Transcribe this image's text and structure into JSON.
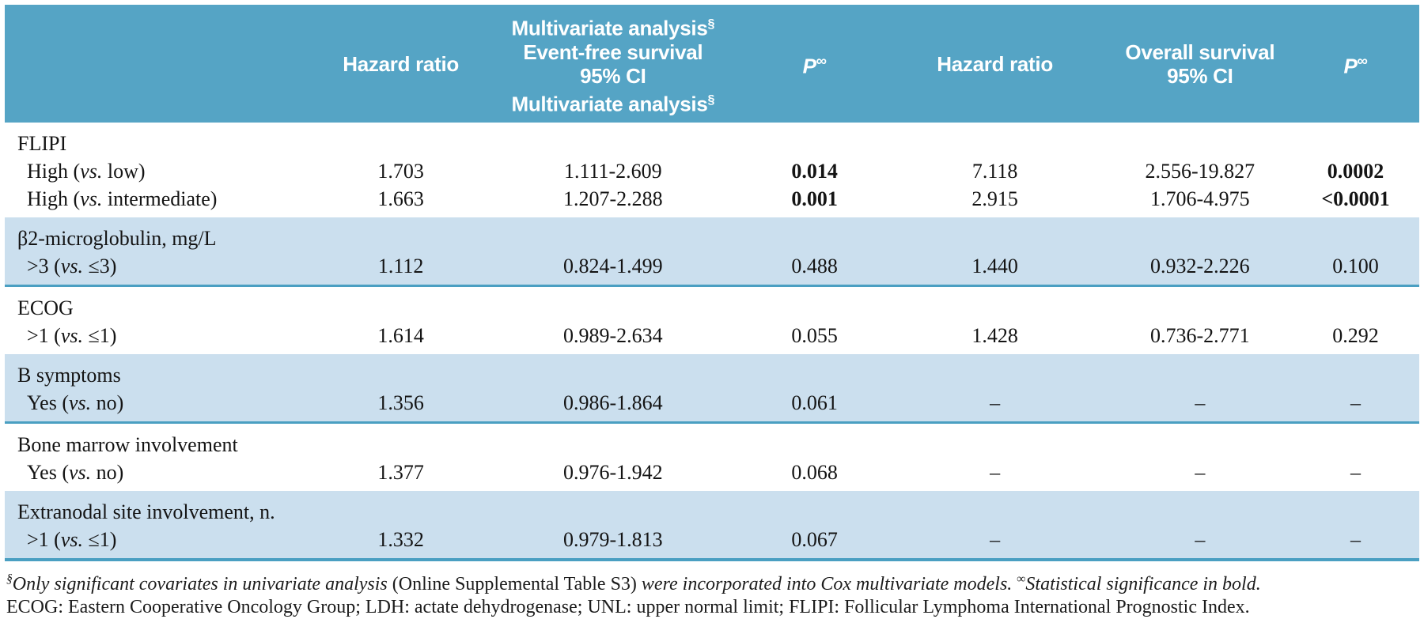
{
  "colors": {
    "header_bg": "#55a4c5",
    "band_bg": "#cbdfee",
    "rule": "#4a9fc2",
    "text": "#141414",
    "header_text": "#ffffff",
    "page_bg": "#ffffff"
  },
  "header": {
    "hazard_ratio_efs": "Hazard ratio",
    "efs_line1": "Multivariate analysis",
    "efs_sup1": "§",
    "efs_line2": "Event-free survival",
    "efs_line3": "95% CI",
    "efs_line4": "Multivariate analysis",
    "efs_sup2": "§",
    "p_efs": "P",
    "p_efs_sup": "∞",
    "hazard_ratio_os": "Hazard ratio",
    "os_line1": "Overall survival",
    "os_line2": "95% CI",
    "p_os": "P",
    "p_os_sup": "∞"
  },
  "sections": [
    {
      "title": "FLIPI",
      "rows": [
        {
          "label_pre": "High (",
          "label_vs": "vs.",
          "label_post": " low)",
          "hr_efs": "1.703",
          "ci_efs": "1.111-2.609",
          "p_efs": "0.014",
          "hr_os": "7.118",
          "ci_os": "2.556-19.827",
          "p_os": "0.0002"
        },
        {
          "label_pre": "High (",
          "label_vs": "vs.",
          "label_post": " intermediate)",
          "hr_efs": "1.663",
          "ci_efs": "1.207-2.288",
          "p_efs": "0.001",
          "hr_os": "2.915",
          "ci_os": "1.706-4.975",
          "p_os": "<0.0001"
        }
      ]
    },
    {
      "title": "β2-microglobulin, mg/L",
      "rows": [
        {
          "label_pre": ">3 (",
          "label_vs": "vs.",
          "label_post": " ≤3)",
          "hr_efs": "1.112",
          "ci_efs": "0.824-1.499",
          "p_efs": "0.488",
          "hr_os": "1.440",
          "ci_os": "0.932-2.226",
          "p_os": "0.100"
        }
      ]
    },
    {
      "title": "ECOG",
      "rows": [
        {
          "label_pre": ">1 (",
          "label_vs": "vs.",
          "label_post": " ≤1)",
          "hr_efs": "1.614",
          "ci_efs": "0.989-2.634",
          "p_efs": "0.055",
          "hr_os": "1.428",
          "ci_os": "0.736-2.771",
          "p_os": "0.292"
        }
      ]
    },
    {
      "title": "B symptoms",
      "rows": [
        {
          "label_pre": "Yes (",
          "label_vs": "vs.",
          "label_post": " no)",
          "hr_efs": "1.356",
          "ci_efs": "0.986-1.864",
          "p_efs": "0.061",
          "hr_os": "–",
          "ci_os": "–",
          "p_os": "–"
        }
      ]
    },
    {
      "title": "Bone marrow involvement",
      "rows": [
        {
          "label_pre": "Yes (",
          "label_vs": "vs.",
          "label_post": " no)",
          "hr_efs": "1.377",
          "ci_efs": "0.976-1.942",
          "p_efs": "0.068",
          "hr_os": "–",
          "ci_os": "–",
          "p_os": "–"
        }
      ]
    },
    {
      "title": "Extranodal site involvement, n.",
      "rows": [
        {
          "label_pre": ">1 (",
          "label_vs": "vs.",
          "label_post": " ≤1)",
          "hr_efs": "1.332",
          "ci_efs": "0.979-1.813",
          "p_efs": "0.067",
          "hr_os": "–",
          "ci_os": "–",
          "p_os": "–"
        }
      ]
    }
  ],
  "footnote1": {
    "sup1": "§",
    "italic1": "Only significant covariates in univariate analysis ",
    "roman": "(Online Supplemental Table S3)",
    "italic2": " were incorporated into Cox multivariate models. ",
    "sup2": "∞",
    "italic3": "Statistical significance in bold."
  },
  "footnote2": "ECOG: Eastern Cooperative Oncology Group; LDH: actate dehydrogenase; UNL: upper normal limit; FLIPI: Follicular Lymphoma International Prognostic Index."
}
